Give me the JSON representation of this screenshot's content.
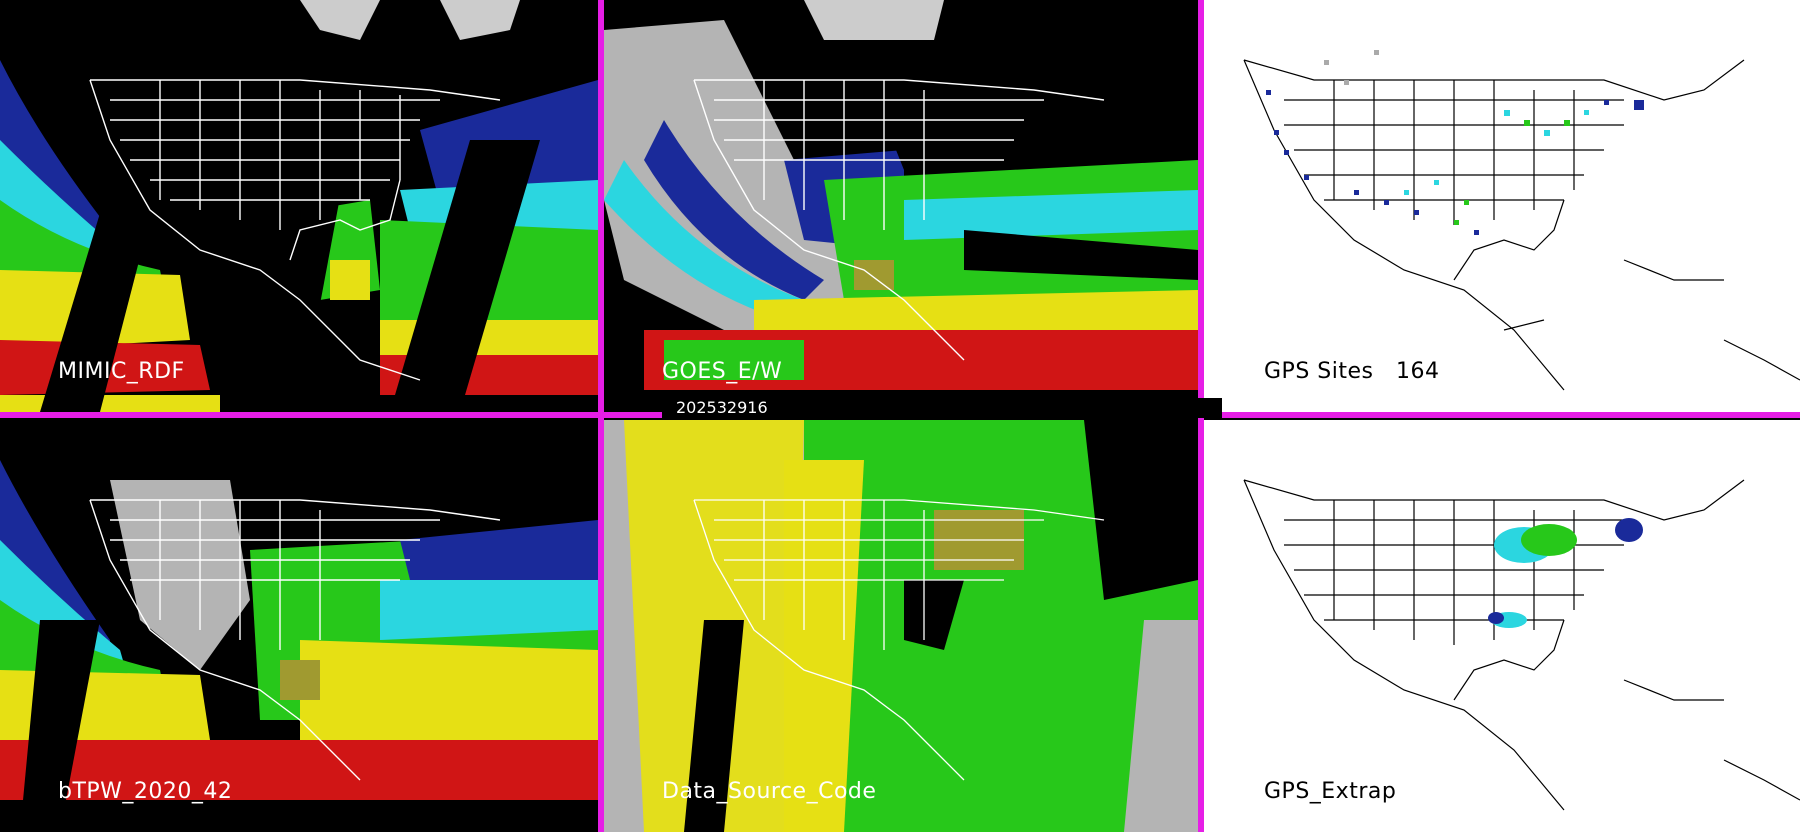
{
  "panels": {
    "mimic_rdf": {
      "label": "MIMIC_RDF"
    },
    "goes_ew": {
      "label": "GOES_E/W"
    },
    "gps_sites": {
      "label": "GPS Sites",
      "count": "164"
    },
    "btpw": {
      "label": "bTPW_2020_42"
    },
    "data_source": {
      "label": "Data_Source_Code"
    },
    "gps_extrap": {
      "label": "GPS_Extrap"
    }
  },
  "timestamp": "202532916",
  "colors": {
    "divider": "#e61ee6",
    "tpw_dry": "#1a2a9a",
    "tpw_low": "#2bd6e0",
    "tpw_mid": "#27c81a",
    "tpw_high": "#e6e014",
    "tpw_max": "#d01515",
    "cloud_gray": "#b4b4b4",
    "olive": "#a09a30"
  }
}
